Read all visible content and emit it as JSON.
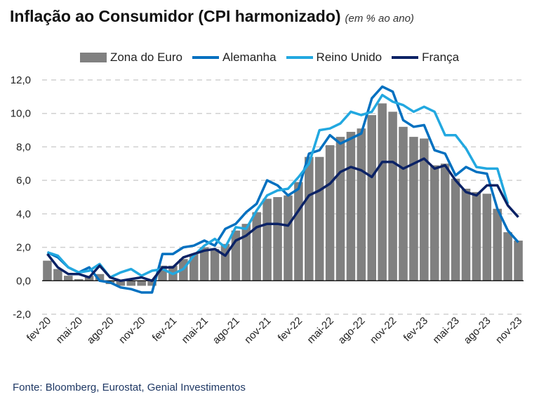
{
  "title": {
    "main": "Inflação ao Consumidor (CPI harmonizado)",
    "subtitle": "(em % ao ano)"
  },
  "source": "Fonte: Bloomberg, Eurostat, Genial Investimentos",
  "colors": {
    "bars": "#808080",
    "alemanha": "#0070C0",
    "reino_unido": "#22A8E0",
    "franca": "#0B2265"
  },
  "chart_data": {
    "type": "bar+line",
    "title": "Inflação ao Consumidor (CPI harmonizado)",
    "ylabel": "% ao ano",
    "ylim": [
      -2,
      12
    ],
    "yticks": [
      "-2,0",
      "0,0",
      "2,0",
      "4,0",
      "6,0",
      "8,0",
      "10,0",
      "12,0"
    ],
    "ytick_values": [
      -2,
      0,
      2,
      4,
      6,
      8,
      10,
      12
    ],
    "grid": "horizontal dashed",
    "legend_position": "top-center",
    "x": [
      "fev-20",
      "mar-20",
      "abr-20",
      "mai-20",
      "jun-20",
      "jul-20",
      "ago-20",
      "set-20",
      "out-20",
      "nov-20",
      "dez-20",
      "jan-21",
      "fev-21",
      "mar-21",
      "abr-21",
      "mai-21",
      "jun-21",
      "jul-21",
      "ago-21",
      "set-21",
      "out-21",
      "nov-21",
      "dez-21",
      "jan-22",
      "fev-22",
      "mar-22",
      "abr-22",
      "mai-22",
      "jun-22",
      "jul-22",
      "ago-22",
      "set-22",
      "out-22",
      "nov-22",
      "dez-22",
      "jan-23",
      "fev-23",
      "mar-23",
      "abr-23",
      "mai-23",
      "jun-23",
      "jul-23",
      "ago-23",
      "set-23",
      "out-23",
      "nov-23"
    ],
    "xtick_labels": [
      "fev-20",
      "mai-20",
      "ago-20",
      "nov-20",
      "fev-21",
      "mai-21",
      "ago-21",
      "nov-21",
      "fev-22",
      "mai-22",
      "ago-22",
      "nov-22",
      "fev-23",
      "mai-23",
      "ago-23",
      "nov-23"
    ],
    "series": [
      {
        "name": "Zona do Euro",
        "type": "bar",
        "values": [
          1.2,
          0.7,
          0.3,
          0.1,
          0.3,
          0.4,
          -0.2,
          -0.3,
          -0.3,
          -0.3,
          -0.3,
          0.9,
          0.9,
          1.3,
          1.6,
          2.0,
          1.9,
          2.2,
          3.0,
          3.4,
          4.1,
          4.9,
          5.0,
          5.1,
          5.9,
          7.4,
          7.4,
          8.1,
          8.6,
          8.9,
          9.1,
          9.9,
          10.6,
          10.1,
          9.2,
          8.6,
          8.5,
          6.9,
          7.0,
          6.1,
          5.5,
          5.3,
          5.2,
          4.3,
          2.9,
          2.4
        ]
      },
      {
        "name": "Alemanha",
        "type": "line",
        "values": [
          1.7,
          1.4,
          0.8,
          0.5,
          0.8,
          0.0,
          -0.1,
          -0.4,
          -0.5,
          -0.7,
          -0.7,
          1.6,
          1.6,
          2.0,
          2.1,
          2.4,
          2.1,
          3.1,
          3.4,
          4.1,
          4.6,
          6.0,
          5.7,
          5.1,
          5.5,
          7.6,
          7.8,
          8.7,
          8.2,
          8.5,
          8.8,
          10.9,
          11.6,
          11.3,
          9.6,
          9.2,
          9.3,
          7.8,
          7.6,
          6.3,
          6.8,
          6.5,
          6.4,
          4.3,
          3.0,
          2.3
        ]
      },
      {
        "name": "Reino Unido",
        "type": "line",
        "values": [
          1.7,
          1.5,
          0.8,
          0.5,
          0.6,
          1.0,
          0.2,
          0.5,
          0.7,
          0.3,
          0.6,
          0.7,
          0.4,
          0.7,
          1.5,
          2.1,
          2.5,
          2.0,
          3.2,
          3.1,
          4.2,
          5.1,
          5.4,
          5.5,
          6.2,
          7.0,
          9.0,
          9.1,
          9.4,
          10.1,
          9.9,
          10.1,
          11.1,
          10.7,
          10.5,
          10.1,
          10.4,
          10.1,
          8.7,
          8.7,
          7.9,
          6.8,
          6.7,
          6.7,
          4.6,
          null
        ]
      },
      {
        "name": "França",
        "type": "line",
        "values": [
          1.6,
          0.8,
          0.4,
          0.4,
          0.2,
          0.9,
          0.2,
          0.0,
          0.1,
          0.2,
          0.0,
          0.8,
          0.8,
          1.4,
          1.6,
          1.8,
          1.9,
          1.5,
          2.4,
          2.7,
          3.2,
          3.4,
          3.4,
          3.3,
          4.2,
          5.1,
          5.4,
          5.8,
          6.5,
          6.8,
          6.6,
          6.2,
          7.1,
          7.1,
          6.7,
          7.0,
          7.3,
          6.7,
          6.9,
          6.0,
          5.3,
          5.1,
          5.7,
          5.7,
          4.5,
          3.8
        ]
      }
    ]
  }
}
